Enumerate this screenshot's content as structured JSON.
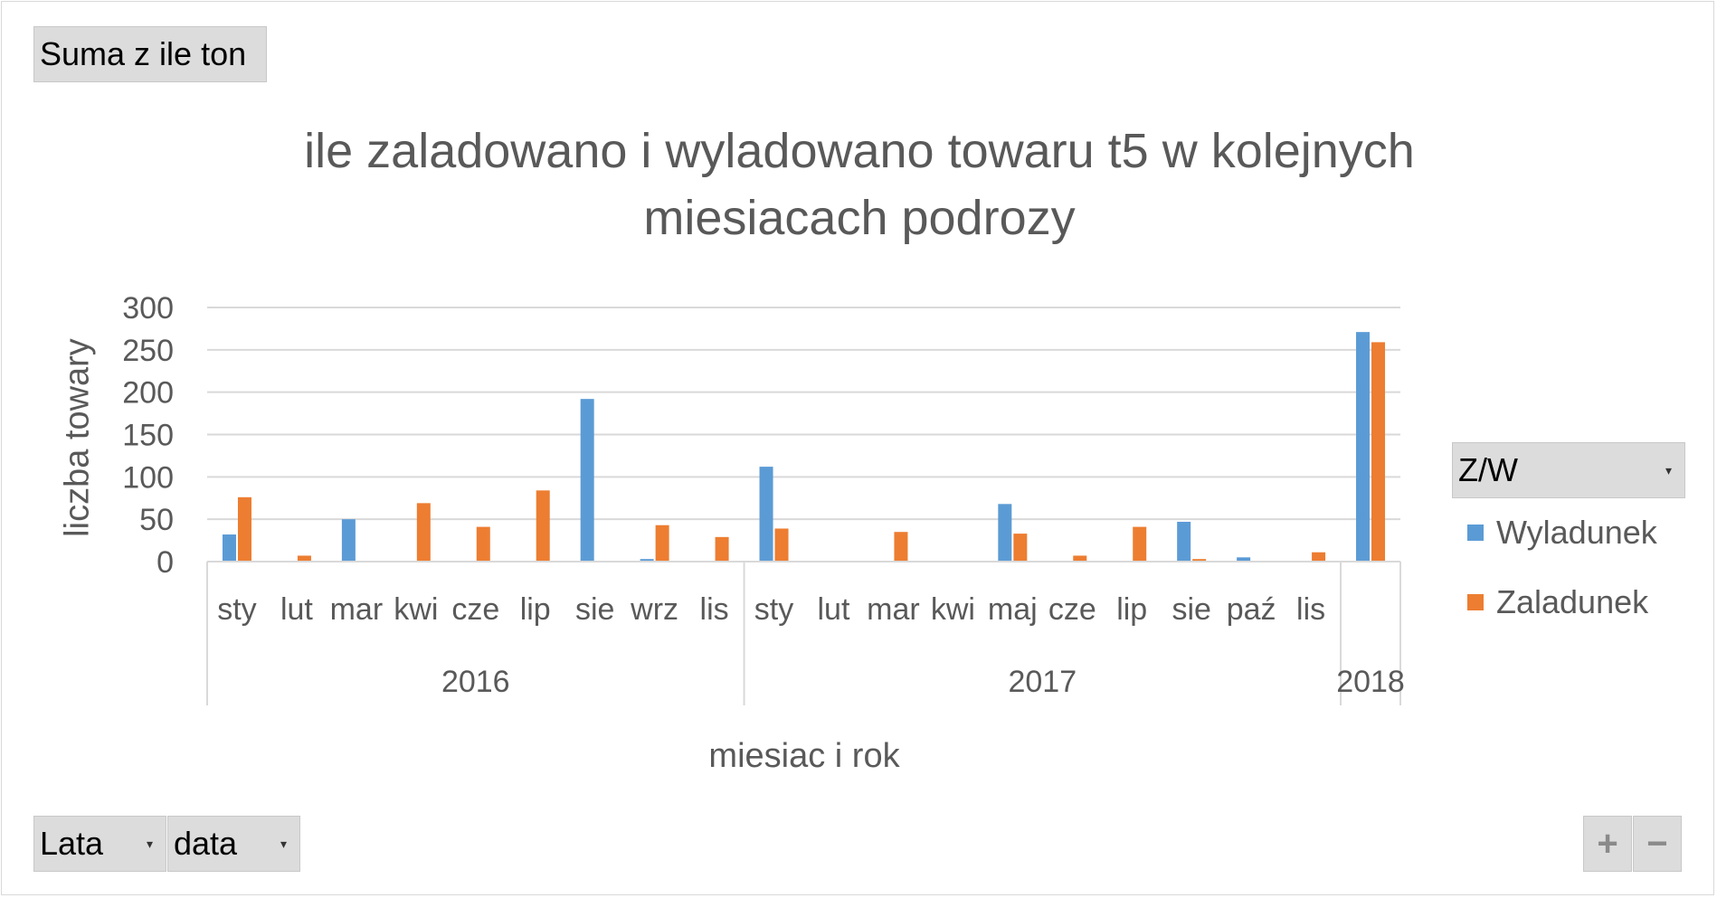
{
  "controls": {
    "value_field": "Suma z ile ton",
    "legend_field": "Z/W",
    "row_field_1": "Lata",
    "row_field_2": "data",
    "expand_symbol": "+",
    "collapse_symbol": "−"
  },
  "chart_data": {
    "type": "bar",
    "title": "ile zaladowano i wyladowano towaru t5 w kolejnych miesiacach podrozy",
    "xlabel": "miesiac i rok",
    "ylabel": "liczba towary",
    "ylim": [
      0,
      300
    ],
    "yticks": [
      0,
      50,
      100,
      150,
      200,
      250,
      300
    ],
    "grid": true,
    "legend_position": "right",
    "groups": [
      {
        "label": "2016",
        "categories": [
          "sty",
          "lut",
          "mar",
          "kwi",
          "cze",
          "lip",
          "sie",
          "wrz",
          "lis"
        ]
      },
      {
        "label": "2017",
        "categories": [
          "sty",
          "lut",
          "mar",
          "kwi",
          "maj",
          "cze",
          "lip",
          "sie",
          "paź",
          "lis"
        ]
      },
      {
        "label": "2018",
        "categories": [
          ""
        ]
      }
    ],
    "series": [
      {
        "name": "Wyladunek",
        "color": "#5b9bd5",
        "values": [
          32,
          0,
          50,
          0,
          0,
          0,
          192,
          3,
          0,
          112,
          0,
          0,
          0,
          68,
          0,
          0,
          47,
          5,
          0,
          271
        ]
      },
      {
        "name": "Zaladunek",
        "color": "#ed7d31",
        "values": [
          76,
          7,
          0,
          69,
          41,
          84,
          0,
          43,
          29,
          39,
          0,
          35,
          0,
          33,
          7,
          41,
          3,
          0,
          11,
          259
        ]
      }
    ]
  }
}
